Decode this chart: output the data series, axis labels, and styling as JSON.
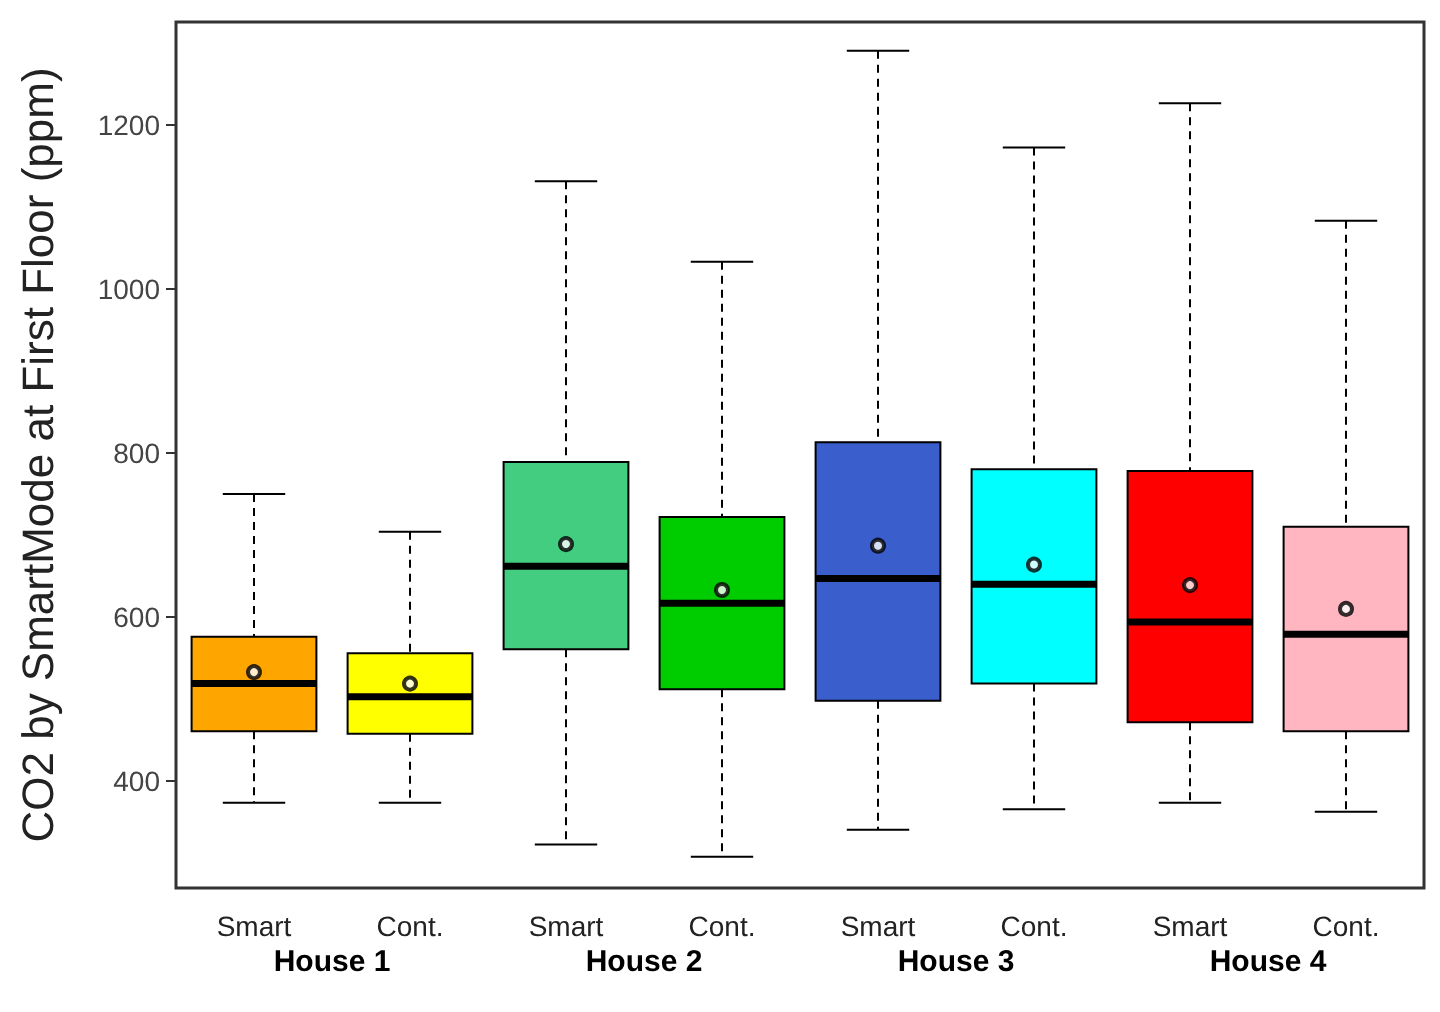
{
  "chart_data": {
    "type": "box",
    "ylabel": "CO2 by SmartMode at First Floor (ppm)",
    "categories": [
      "Smart",
      "Cont.",
      "Smart",
      "Cont.",
      "Smart",
      "Cont.",
      "Smart",
      "Cont."
    ],
    "colors": [
      "#ffa500",
      "#ffff00",
      "#43cd80",
      "#00cd00",
      "#3a5fcd",
      "#00ffff",
      "#ff0000",
      "#ffb6c1"
    ],
    "boxes": [
      {
        "low": 374,
        "q1": 461,
        "median": 519,
        "q3": 576,
        "high": 750,
        "mean": 533
      },
      {
        "low": 374,
        "q1": 458,
        "median": 503,
        "q3": 556,
        "high": 704,
        "mean": 519
      },
      {
        "low": 323,
        "q1": 561,
        "median": 662,
        "q3": 789,
        "high": 1131,
        "mean": 689
      },
      {
        "low": 308,
        "q1": 512,
        "median": 617,
        "q3": 722,
        "high": 1033,
        "mean": 633
      },
      {
        "low": 341,
        "q1": 498,
        "median": 647,
        "q3": 813,
        "high": 1290,
        "mean": 687
      },
      {
        "low": 366,
        "q1": 519,
        "median": 640,
        "q3": 780,
        "high": 1172,
        "mean": 664
      },
      {
        "low": 374,
        "q1": 472,
        "median": 594,
        "q3": 778,
        "high": 1226,
        "mean": 639
      },
      {
        "low": 363,
        "q1": 461,
        "median": 579,
        "q3": 710,
        "high": 1083,
        "mean": 610
      }
    ],
    "annotations": [
      "House 1",
      "House 2",
      "House 3",
      "House 4"
    ],
    "ylim": [
      270,
      1325
    ],
    "yticks": [
      400,
      600,
      800,
      1000,
      1200
    ],
    "grid": false
  }
}
